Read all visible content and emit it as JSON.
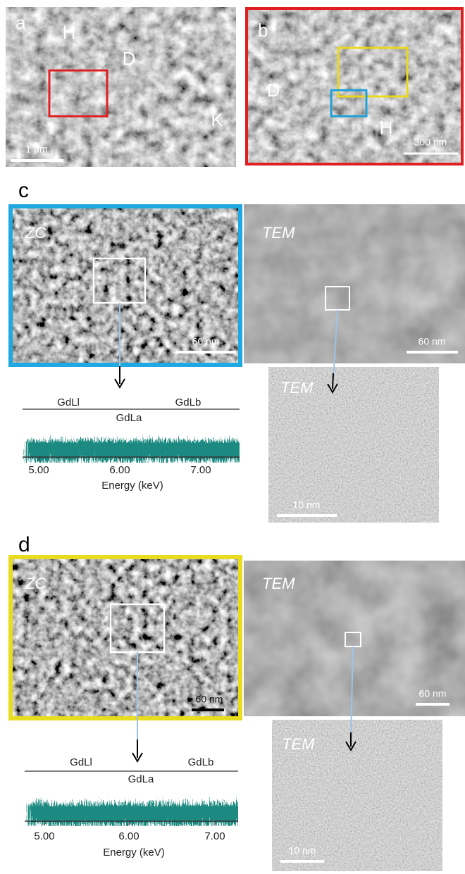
{
  "panel_a": {
    "label": "a",
    "annotations": [
      "H",
      "D",
      "K"
    ],
    "scale_bar": "1 μm"
  },
  "panel_b": {
    "label": "b",
    "annotations": [
      "D",
      "H"
    ],
    "scale_bar": "300 nm"
  },
  "panel_c": {
    "label": "c",
    "zc": {
      "title": "ZC",
      "scale_bar": "60 nm"
    },
    "tem": {
      "title": "TEM",
      "scale_bar": "60 nm"
    },
    "tem_zoom": {
      "title": "TEM",
      "scale_bar": "10 nm"
    },
    "spectrum": {
      "peaks": [
        "GdLl",
        "GdLb",
        "GdLa"
      ],
      "ticks": [
        "5.00",
        "6.00",
        "7.00"
      ],
      "xlabel": "Energy (keV)"
    }
  },
  "panel_d": {
    "label": "d",
    "zc": {
      "title": "ZC",
      "scale_bar": "60 nm"
    },
    "tem": {
      "title": "TEM",
      "scale_bar": "60 nm"
    },
    "tem_zoom": {
      "title": "TEM",
      "scale_bar": "10 nm"
    },
    "spectrum": {
      "peaks": [
        "GdLl",
        "GdLb",
        "GdLa"
      ],
      "ticks": [
        "5.00",
        "6.00",
        "7.00"
      ],
      "xlabel": "Energy (keV)"
    }
  }
}
